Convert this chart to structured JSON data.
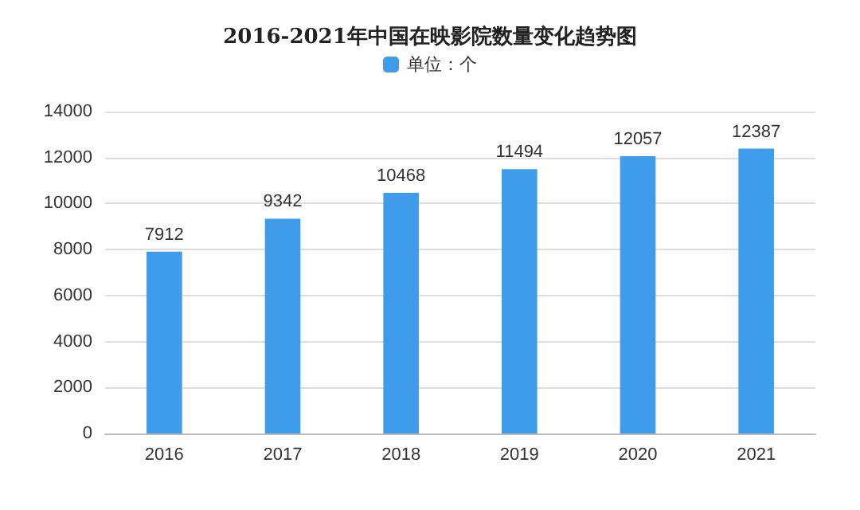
{
  "chart_data": {
    "type": "bar",
    "title": "2016-2021年中国在映影院数量变化趋势图",
    "categories": [
      "2016",
      "2017",
      "2018",
      "2019",
      "2020",
      "2021"
    ],
    "series": [
      {
        "name": "单位：个",
        "color": "#3e9cea",
        "values": [
          7912,
          9342,
          10468,
          11494,
          12057,
          12387
        ]
      }
    ],
    "ylim": [
      0,
      14000
    ],
    "yticks": [
      0,
      2000,
      4000,
      6000,
      8000,
      10000,
      12000,
      14000
    ],
    "grid": "y",
    "legend": "top",
    "data_labels": true
  }
}
